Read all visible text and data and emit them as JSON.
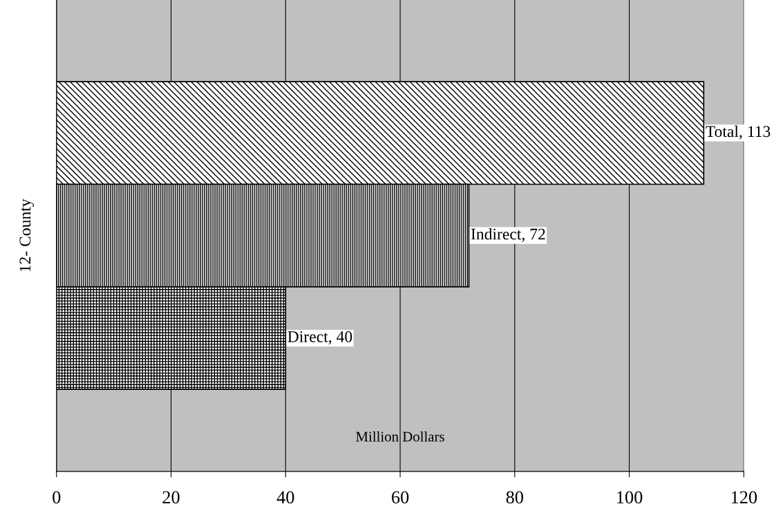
{
  "chart_data": {
    "type": "bar",
    "orientation": "horizontal",
    "categories": [
      null,
      null,
      null
    ],
    "xlabel": "Million Dollars",
    "ylabel": "12- County",
    "series": [
      {
        "color": "#000000",
        "values": [
          113,
          72,
          40
        ],
        "value_labels": [
          "Total, 113",
          "Indirect, 72",
          "Direct, 40"
        ]
      }
    ],
    "xlim": [
      0,
      120
    ],
    "xticks": [
      0,
      20,
      40,
      60,
      80,
      100,
      120
    ],
    "grid": "x",
    "legend": false
  }
}
